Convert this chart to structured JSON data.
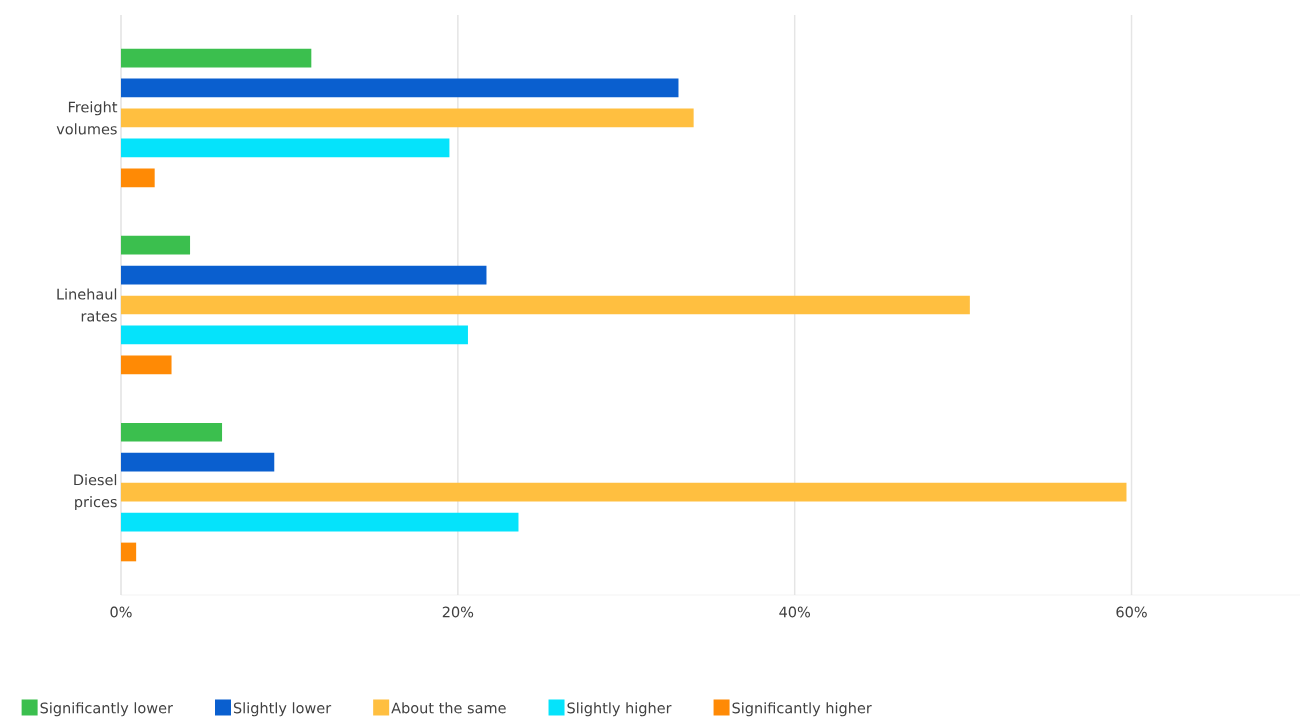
{
  "chart_data": {
    "type": "bar",
    "orientation": "horizontal",
    "categories": [
      "Freight volumes",
      "Linehaul rates",
      "Diesel prices"
    ],
    "series": [
      {
        "name": "Significantly lower",
        "color": "#3bbf4e",
        "values": [
          11.3,
          4.1,
          6.0
        ]
      },
      {
        "name": "Slightly lower",
        "color": "#0a5fcf",
        "values": [
          33.1,
          21.7,
          9.1
        ]
      },
      {
        "name": "About the same",
        "color": "#ffbf40",
        "values": [
          34.0,
          50.4,
          59.7
        ]
      },
      {
        "name": "Slightly higher",
        "color": "#05e3fb",
        "values": [
          19.5,
          20.6,
          23.6
        ]
      },
      {
        "name": "Significantly higher",
        "color": "#ff8a05",
        "values": [
          2.0,
          3.0,
          0.9
        ]
      }
    ],
    "xlim": [
      0,
      70
    ],
    "xticks": [
      {
        "value": 0,
        "label": "0%"
      },
      {
        "value": 20,
        "label": "20%"
      },
      {
        "value": 40,
        "label": "40%"
      },
      {
        "value": 60,
        "label": "60%"
      }
    ],
    "grid": "x",
    "legend": "bottom"
  }
}
